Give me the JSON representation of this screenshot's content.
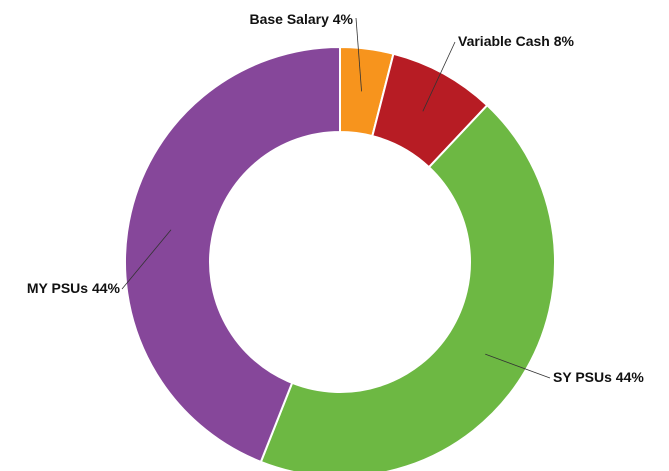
{
  "chart_data": {
    "type": "donut",
    "categories": [
      "Base Salary",
      "Variable Cash",
      "SY PSUs",
      "MY PSUs"
    ],
    "values": [
      4,
      8,
      44,
      44
    ],
    "value_labels": [
      "4%",
      "8%",
      "44%",
      "44%"
    ],
    "colors": [
      "#f7941d",
      "#b71c24",
      "#6db843",
      "#86479a"
    ]
  }
}
